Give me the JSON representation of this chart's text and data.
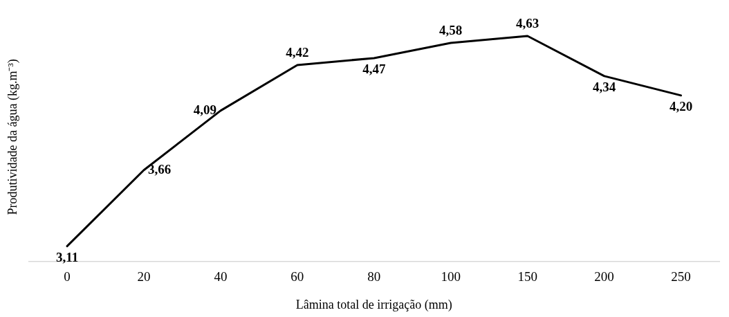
{
  "chart_data": {
    "type": "line",
    "xlabel": "Lâmina total de irrigação (mm)",
    "ylabel": "Produtividade da água (kg.m⁻³)",
    "categories": [
      "0",
      "20",
      "40",
      "60",
      "80",
      "100",
      "150",
      "200",
      "250"
    ],
    "values": [
      3.11,
      3.66,
      4.09,
      4.42,
      4.47,
      4.58,
      4.63,
      4.34,
      4.2
    ],
    "value_labels": [
      "3,11",
      "3,66",
      "4,09",
      "4,42",
      "4,47",
      "4,58",
      "4,63",
      "4,34",
      "4,20"
    ],
    "color": "#000000",
    "grid": false,
    "legend": false,
    "marker": "none",
    "line_style": "solid",
    "tick_labels": "x"
  }
}
